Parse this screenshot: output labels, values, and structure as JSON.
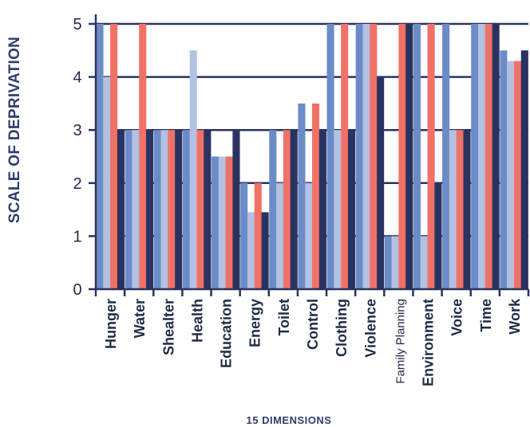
{
  "chart_data": {
    "type": "bar",
    "title": "",
    "ylabel": "SCALE OF DEPRIVATION",
    "xlabel": "15 DIMENSIONS",
    "ylim": [
      0,
      5
    ],
    "yticks": [
      "0",
      "1",
      "2",
      "3",
      "4",
      "5"
    ],
    "grid": true,
    "legend": "none",
    "categories": [
      "Hunger",
      "Water",
      "Shealter",
      "Health",
      "Education",
      "Energy",
      "Toilet",
      "Control",
      "Clothing",
      "Violence",
      "Family Planning",
      "Environment",
      "Voice",
      "Time",
      "Work"
    ],
    "series": [
      {
        "color": "#6b8cc7",
        "values": [
          5,
          3,
          3,
          3,
          2.5,
          2,
          3,
          3.5,
          5,
          5,
          1,
          5,
          5,
          5,
          4.5
        ]
      },
      {
        "color": "#b3c1e3",
        "values": [
          4,
          3,
          3,
          4.5,
          2.5,
          1.45,
          2,
          2,
          3,
          5,
          1,
          1,
          3,
          5,
          4.3
        ]
      },
      {
        "color": "#f07266",
        "values": [
          5,
          5,
          3,
          3,
          2.5,
          2,
          3,
          3.5,
          5,
          5,
          5,
          5,
          3,
          5,
          4.3
        ]
      },
      {
        "color": "#2a3360",
        "values": [
          3,
          3,
          3,
          3,
          3,
          1.45,
          3,
          3,
          3,
          4,
          5,
          2,
          3,
          5,
          4.5
        ]
      }
    ]
  }
}
